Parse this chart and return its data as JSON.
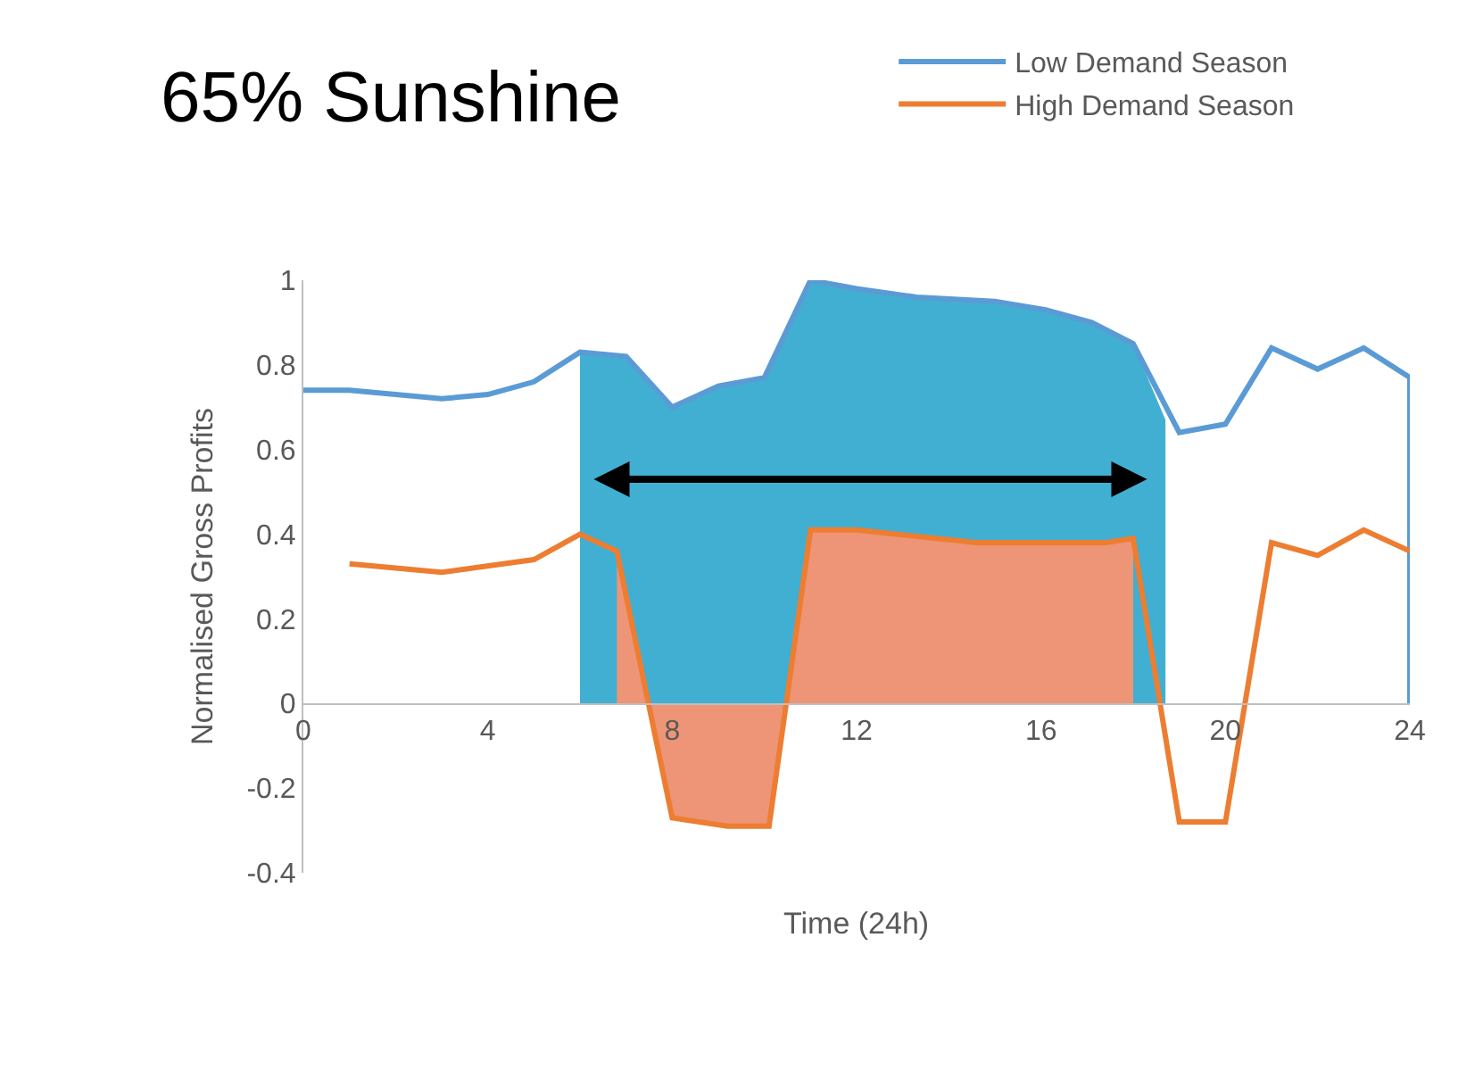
{
  "chart_data": {
    "type": "line",
    "title": "65% Sunshine",
    "xlabel": "Time (24h)",
    "ylabel": "Normalised Gross Profits",
    "xlim": [
      0,
      24
    ],
    "xticks": [
      0,
      4,
      8,
      12,
      16,
      20,
      24
    ],
    "ylim": [
      -0.4,
      1
    ],
    "yticks": [
      -0.4,
      -0.2,
      0,
      0.2,
      0.4,
      0.6,
      0.8,
      1
    ],
    "legend": "top right",
    "series": [
      {
        "type": "area",
        "color": "#41afd2",
        "x": [
          6,
          6,
          7,
          8,
          9,
          10,
          11,
          12,
          13.3,
          15,
          16.1,
          17.1,
          18,
          18.7,
          18.7
        ],
        "values": [
          0,
          0.83,
          0.82,
          0.7,
          0.75,
          0.77,
          1,
          0.98,
          0.96,
          0.95,
          0.93,
          0.9,
          0.85,
          0.67,
          0
        ]
      },
      {
        "type": "area",
        "color": "#ee9477",
        "x": [
          6.8,
          6.8,
          8,
          9.2,
          10.1,
          11,
          12,
          14.6,
          17.4,
          18,
          18
        ],
        "values": [
          0,
          0.36,
          -0.27,
          -0.29,
          -0.29,
          0.41,
          0.41,
          0.38,
          0.38,
          0.39,
          0
        ]
      },
      {
        "name": "Low Demand Season",
        "color": "#5b9bd5",
        "x": [
          0,
          1,
          3,
          4,
          5,
          6,
          7,
          8,
          9,
          10,
          11,
          12,
          13.3,
          15,
          16.1,
          17.1,
          18,
          19,
          20,
          21,
          22,
          23,
          24,
          24
        ],
        "values": [
          0.74,
          0.74,
          0.72,
          0.73,
          0.76,
          0.83,
          0.82,
          0.7,
          0.75,
          0.77,
          1,
          0.98,
          0.96,
          0.95,
          0.93,
          0.9,
          0.85,
          0.64,
          0.66,
          0.84,
          0.79,
          0.84,
          0.77,
          0
        ]
      },
      {
        "name": "High Demand Season",
        "color": "#ed7d31",
        "x": [
          1,
          3,
          5,
          6,
          6.8,
          8,
          9.2,
          10.1,
          11,
          12,
          14.6,
          17.4,
          18,
          19,
          20,
          21,
          22,
          23,
          24
        ],
        "values": [
          0.33,
          0.31,
          0.34,
          0.4,
          0.36,
          -0.27,
          -0.29,
          -0.29,
          0.41,
          0.41,
          0.38,
          0.38,
          0.39,
          -0.28,
          -0.28,
          0.38,
          0.35,
          0.41,
          0.36
        ]
      }
    ]
  }
}
